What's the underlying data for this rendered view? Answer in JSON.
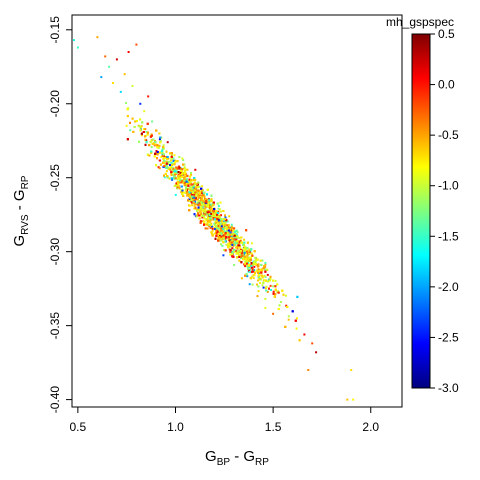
{
  "chart_data": {
    "type": "scatter",
    "xlabel": {
      "main1": "G",
      "sub1": "BP",
      "mid": " - G",
      "sub2": "RP"
    },
    "ylabel": {
      "main1": "G",
      "sub1": "RVS",
      "mid": " - G",
      "sub2": "RP"
    },
    "xlim": [
      0.47,
      2.16
    ],
    "ylim": [
      -0.405,
      -0.14
    ],
    "x_ticks": [
      0.5,
      1.0,
      1.5,
      2.0
    ],
    "x_tick_labels": [
      "0.5",
      "1.0",
      "1.5",
      "2.0"
    ],
    "y_ticks": [
      -0.15,
      -0.2,
      -0.25,
      -0.3,
      -0.35,
      -0.4
    ],
    "y_tick_labels": [
      "-0.15",
      "-0.20",
      "-0.25",
      "-0.30",
      "-0.35",
      "-0.40"
    ],
    "colorbar": {
      "title": "mh_gspspec",
      "min": -3.0,
      "max": 0.5,
      "ticks": [
        0.5,
        0.0,
        -0.5,
        -1.0,
        -1.5,
        -2.0,
        -2.5,
        -3.0
      ],
      "tick_labels": [
        "0.5",
        "0.0",
        "-0.5",
        "-1.0",
        "-1.5",
        "-2.0",
        "-2.5",
        "-3.0"
      ],
      "colormap": [
        "#00007F",
        "#0000FF",
        "#007FFF",
        "#00FFFF",
        "#7FFF7F",
        "#FFFF00",
        "#FF7F00",
        "#FF0000",
        "#7F0000"
      ]
    },
    "trend": {
      "x_start": 0.62,
      "x_end": 1.75,
      "y_start": -0.185,
      "y_end": -0.365
    },
    "points": [
      [
        0.6,
        -0.155,
        -0.5
      ],
      [
        0.64,
        -0.168,
        -0.3
      ],
      [
        0.62,
        -0.182,
        -2.0
      ],
      [
        0.66,
        -0.175,
        -1.4
      ],
      [
        0.68,
        -0.186,
        -0.7
      ],
      [
        0.7,
        -0.17,
        0.2
      ],
      [
        0.72,
        -0.192,
        -1.8
      ],
      [
        0.74,
        -0.18,
        -0.6
      ],
      [
        0.76,
        -0.165,
        0.1
      ],
      [
        0.78,
        -0.188,
        -1.0
      ],
      [
        0.8,
        -0.16,
        -0.2
      ],
      [
        0.82,
        -0.2,
        -2.4
      ],
      [
        0.84,
        -0.205,
        -0.9
      ],
      [
        0.86,
        -0.195,
        0.0
      ],
      [
        0.88,
        -0.212,
        -1.3
      ],
      [
        0.9,
        -0.218,
        -0.4
      ],
      [
        0.92,
        -0.224,
        -2.7
      ],
      [
        0.94,
        -0.23,
        -0.8
      ],
      [
        0.96,
        -0.226,
        0.3
      ],
      [
        0.98,
        -0.24,
        -1.6
      ],
      [
        1.0,
        -0.245,
        -0.5
      ],
      [
        1.02,
        -0.236,
        -1.1
      ],
      [
        1.04,
        -0.252,
        0.1
      ],
      [
        1.06,
        -0.258,
        -2.1
      ],
      [
        1.08,
        -0.248,
        -0.6
      ],
      [
        1.1,
        -0.265,
        -1.2
      ],
      [
        1.12,
        -0.27,
        0.2
      ],
      [
        1.14,
        -0.262,
        -0.9
      ],
      [
        1.16,
        -0.278,
        -1.7
      ],
      [
        1.18,
        -0.284,
        -0.3
      ],
      [
        1.2,
        -0.276,
        -1.0
      ],
      [
        1.22,
        -0.29,
        -0.7
      ],
      [
        1.24,
        -0.296,
        -1.4
      ],
      [
        1.26,
        -0.288,
        0.0
      ],
      [
        1.28,
        -0.302,
        -0.8
      ],
      [
        1.3,
        -0.309,
        -1.2
      ],
      [
        1.34,
        -0.318,
        -0.6
      ],
      [
        1.38,
        -0.322,
        -2.0
      ],
      [
        1.42,
        -0.33,
        -0.5
      ],
      [
        1.46,
        -0.338,
        -0.9
      ],
      [
        1.5,
        -0.342,
        -0.3
      ],
      [
        1.54,
        -0.334,
        -1.1
      ],
      [
        1.58,
        -0.346,
        -0.6
      ],
      [
        1.62,
        -0.352,
        -0.8
      ],
      [
        1.66,
        -0.356,
        0.1
      ],
      [
        1.7,
        -0.362,
        -0.2
      ],
      [
        1.72,
        -0.368,
        0.3
      ],
      [
        1.68,
        -0.38,
        -0.4
      ],
      [
        1.9,
        -0.38,
        -0.7
      ],
      [
        1.88,
        -0.4,
        -0.6
      ],
      [
        1.91,
        -0.4,
        -0.8
      ],
      [
        0.48,
        -0.157,
        -1.6
      ],
      [
        0.5,
        -0.162,
        -1.5
      ]
    ]
  }
}
